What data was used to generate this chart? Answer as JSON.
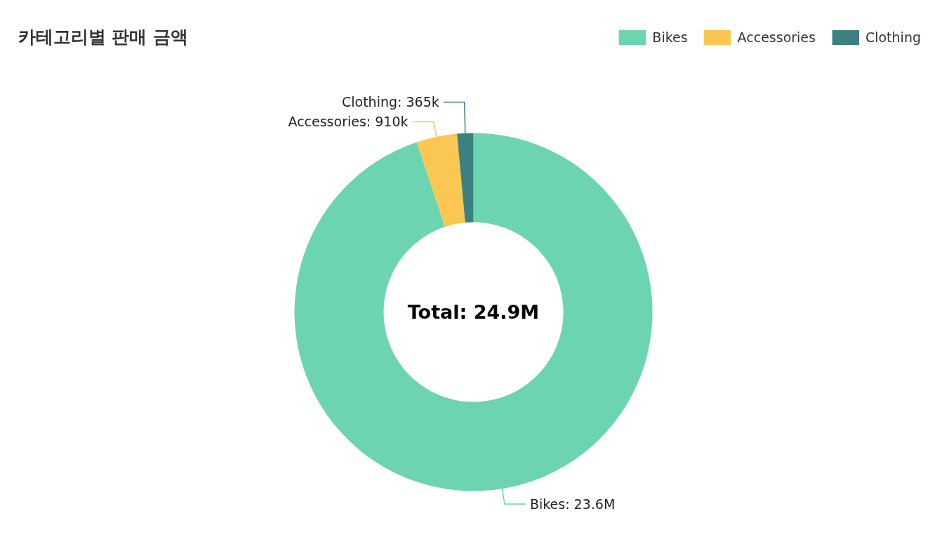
{
  "chart_data": {
    "type": "donut",
    "title": "카테고리별 판매 금액",
    "categories": [
      "Bikes",
      "Accessories",
      "Clothing"
    ],
    "values": [
      23600000,
      910000,
      365000
    ],
    "value_labels": [
      "Bikes: 23.6M",
      "Accessories: 910k",
      "Clothing: 365k"
    ],
    "colors": [
      "#6dd4b1",
      "#fbc753",
      "#3d8080"
    ],
    "legend": "top right",
    "annotations": [
      "Total: 24.9M"
    ]
  }
}
